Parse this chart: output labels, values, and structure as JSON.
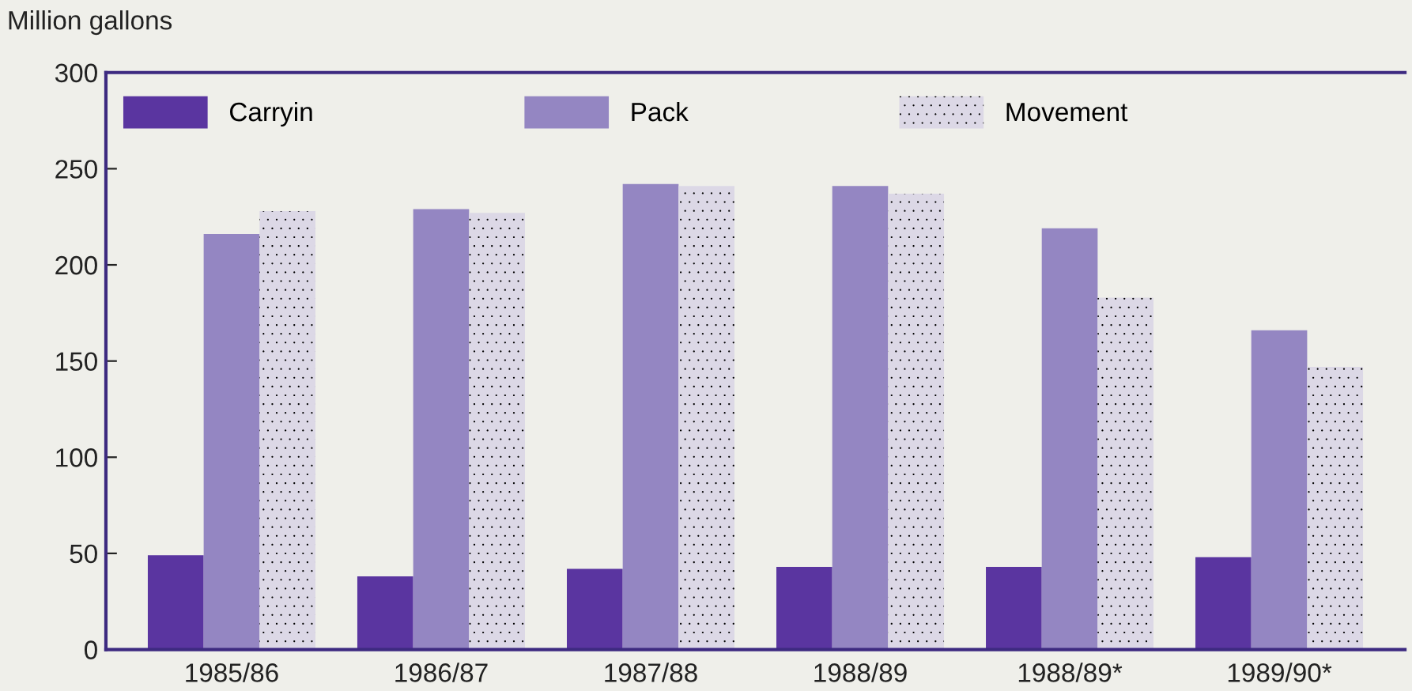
{
  "chart_data": {
    "type": "bar",
    "ylabel": "Million gallons",
    "categories": [
      "1985/86",
      "1986/87",
      "1987/88",
      "1988/89",
      "1988/89*",
      "1989/90*"
    ],
    "series": [
      {
        "name": "Carryin",
        "color": "#5a35a0",
        "values": [
          49,
          38,
          42,
          43,
          43,
          48
        ]
      },
      {
        "name": "Pack",
        "color": "#9486c2",
        "values": [
          216,
          229,
          242,
          241,
          219,
          166
        ]
      },
      {
        "name": "Movement",
        "color": "#dcd8e6",
        "values": [
          228,
          227,
          241,
          237,
          183,
          147
        ]
      }
    ],
    "ylim": [
      0,
      300
    ],
    "yticks": [
      0,
      50,
      100,
      150,
      200,
      250,
      300
    ],
    "grid": false,
    "legend": "top"
  }
}
